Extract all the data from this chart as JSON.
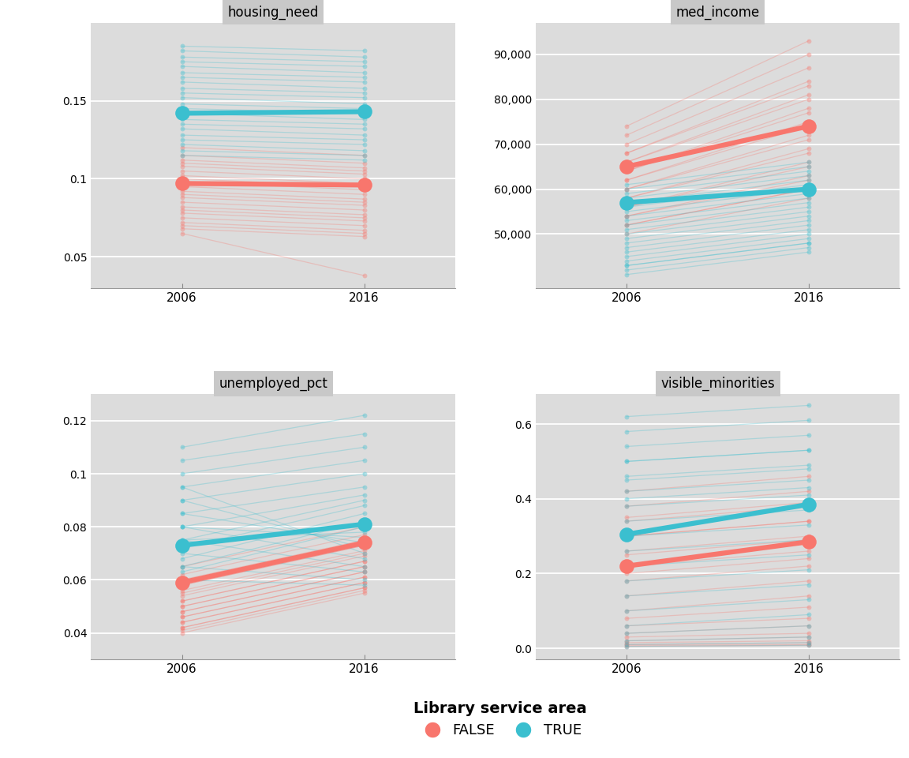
{
  "panels": [
    "housing_need",
    "med_income",
    "unemployed_pct",
    "visible_minorities"
  ],
  "color_false": "#F8766D",
  "color_true": "#3BBFCF",
  "bg_color": "#DCDCDC",
  "fig_bg": "#FFFFFF",
  "panel_title_bg": "#C8C8C8",
  "housing_need": {
    "false_2006": [
      0.12,
      0.115,
      0.112,
      0.11,
      0.108,
      0.105,
      0.102,
      0.1,
      0.098,
      0.095,
      0.092,
      0.09,
      0.088,
      0.085,
      0.082,
      0.08,
      0.078,
      0.075,
      0.072,
      0.07,
      0.068,
      0.065
    ],
    "false_2016": [
      0.115,
      0.11,
      0.107,
      0.105,
      0.103,
      0.1,
      0.097,
      0.095,
      0.093,
      0.09,
      0.087,
      0.085,
      0.083,
      0.08,
      0.077,
      0.075,
      0.073,
      0.07,
      0.067,
      0.065,
      0.063,
      0.038
    ],
    "true_2006": [
      0.185,
      0.182,
      0.178,
      0.175,
      0.172,
      0.168,
      0.165,
      0.162,
      0.158,
      0.155,
      0.152,
      0.148,
      0.145,
      0.142,
      0.138,
      0.135,
      0.132,
      0.128,
      0.125,
      0.122,
      0.118,
      0.115
    ],
    "true_2016": [
      0.182,
      0.178,
      0.175,
      0.172,
      0.168,
      0.165,
      0.162,
      0.158,
      0.155,
      0.152,
      0.148,
      0.145,
      0.142,
      0.138,
      0.135,
      0.132,
      0.128,
      0.125,
      0.122,
      0.118,
      0.115,
      0.112
    ],
    "mean_false_2006": 0.097,
    "mean_false_2016": 0.096,
    "mean_true_2006": 0.142,
    "mean_true_2016": 0.143,
    "ylim": [
      0.03,
      0.2
    ],
    "yticks": [
      0.05,
      0.1,
      0.15
    ]
  },
  "med_income": {
    "false_2006": [
      74000,
      72000,
      70000,
      68000,
      66000,
      64000,
      62000,
      60000,
      58000,
      56000,
      54000,
      52000,
      50000,
      52000,
      54000,
      56000,
      58000,
      60000,
      62000,
      64000,
      66000,
      68000
    ],
    "false_2016": [
      93000,
      90000,
      87000,
      84000,
      81000,
      78000,
      75000,
      72000,
      69000,
      66000,
      63000,
      60000,
      58000,
      60000,
      62000,
      65000,
      68000,
      71000,
      74000,
      77000,
      80000,
      83000
    ],
    "true_2006": [
      60000,
      58000,
      56000,
      54000,
      52000,
      50000,
      48000,
      46000,
      44000,
      43000,
      42000,
      41000,
      43000,
      45000,
      47000,
      49000,
      51000,
      53000,
      55000,
      57000,
      59000,
      61000
    ],
    "true_2016": [
      65000,
      63000,
      61000,
      59000,
      57000,
      55000,
      53000,
      51000,
      49000,
      48000,
      47000,
      46000,
      48000,
      50000,
      52000,
      54000,
      56000,
      58000,
      60000,
      62000,
      64000,
      66000
    ],
    "mean_false_2006": 65000,
    "mean_false_2016": 74000,
    "mean_true_2006": 57000,
    "mean_true_2016": 60000,
    "ylim": [
      38000,
      97000
    ],
    "yticks": [
      50000,
      60000,
      70000,
      80000,
      90000
    ]
  },
  "unemployed_pct": {
    "false_2006": [
      0.065,
      0.062,
      0.06,
      0.058,
      0.056,
      0.054,
      0.052,
      0.05,
      0.048,
      0.046,
      0.044,
      0.042,
      0.05,
      0.055,
      0.058,
      0.052,
      0.048,
      0.046,
      0.044,
      0.042,
      0.04,
      0.041
    ],
    "false_2016": [
      0.08,
      0.077,
      0.075,
      0.073,
      0.071,
      0.069,
      0.067,
      0.065,
      0.063,
      0.061,
      0.059,
      0.057,
      0.065,
      0.07,
      0.073,
      0.067,
      0.063,
      0.061,
      0.059,
      0.057,
      0.055,
      0.056
    ],
    "true_2006": [
      0.11,
      0.105,
      0.1,
      0.095,
      0.09,
      0.085,
      0.08,
      0.075,
      0.072,
      0.068,
      0.065,
      0.063,
      0.075,
      0.08,
      0.085,
      0.09,
      0.095,
      0.08,
      0.075,
      0.07,
      0.065,
      0.06
    ],
    "true_2016": [
      0.122,
      0.115,
      0.11,
      0.105,
      0.1,
      0.095,
      0.092,
      0.09,
      0.088,
      0.085,
      0.082,
      0.08,
      0.078,
      0.076,
      0.074,
      0.072,
      0.07,
      0.068,
      0.065,
      0.063,
      0.06,
      0.058
    ],
    "mean_false_2006": 0.059,
    "mean_false_2016": 0.074,
    "mean_true_2006": 0.073,
    "mean_true_2016": 0.081,
    "ylim": [
      0.03,
      0.13
    ],
    "yticks": [
      0.04,
      0.06,
      0.08,
      0.1,
      0.12
    ]
  },
  "visible_minorities": {
    "false_2006": [
      0.42,
      0.38,
      0.34,
      0.3,
      0.26,
      0.22,
      0.18,
      0.14,
      0.1,
      0.08,
      0.06,
      0.04,
      0.03,
      0.02,
      0.015,
      0.01,
      0.008,
      0.005,
      0.2,
      0.25,
      0.3,
      0.35
    ],
    "false_2016": [
      0.46,
      0.42,
      0.38,
      0.34,
      0.3,
      0.26,
      0.22,
      0.18,
      0.14,
      0.11,
      0.08,
      0.06,
      0.04,
      0.03,
      0.02,
      0.015,
      0.01,
      0.008,
      0.24,
      0.29,
      0.34,
      0.39
    ],
    "true_2006": [
      0.62,
      0.58,
      0.54,
      0.5,
      0.46,
      0.42,
      0.38,
      0.34,
      0.3,
      0.26,
      0.22,
      0.18,
      0.14,
      0.1,
      0.06,
      0.04,
      0.02,
      0.01,
      0.005,
      0.4,
      0.45,
      0.5
    ],
    "true_2016": [
      0.65,
      0.61,
      0.57,
      0.53,
      0.49,
      0.45,
      0.41,
      0.37,
      0.33,
      0.29,
      0.25,
      0.21,
      0.17,
      0.13,
      0.09,
      0.06,
      0.03,
      0.015,
      0.008,
      0.43,
      0.48,
      0.53
    ],
    "mean_false_2006": 0.22,
    "mean_false_2016": 0.285,
    "mean_true_2006": 0.305,
    "mean_true_2016": 0.385,
    "ylim": [
      -0.03,
      0.68
    ],
    "yticks": [
      0.0,
      0.2,
      0.4,
      0.6
    ]
  }
}
